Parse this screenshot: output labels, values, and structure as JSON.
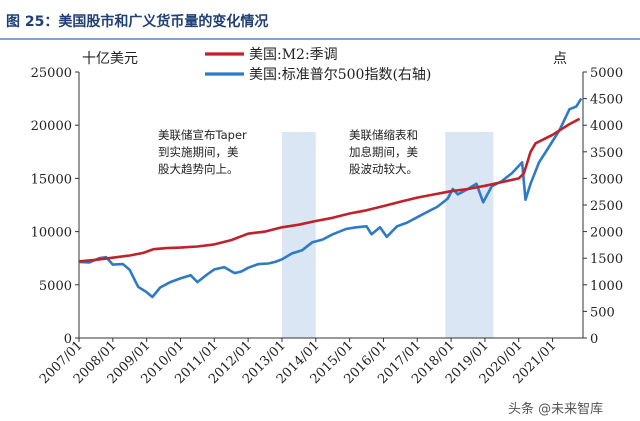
{
  "header": {
    "figure_label": "图 25：美国股市和广义货币量的变化情况"
  },
  "watermark": "头条 @未来智库",
  "colors": {
    "m2": "#c0222a",
    "sp500": "#2e7ac4",
    "shade": "#d5e2f3",
    "header_rule": "#7aa5d6"
  },
  "chart_data": {
    "type": "line",
    "left_axis": {
      "unit": "十亿美元",
      "ylim": [
        0,
        25000
      ],
      "ticks": [
        "0",
        "5000",
        "10000",
        "15000",
        "20000",
        "25000"
      ]
    },
    "right_axis": {
      "unit": "点",
      "ylim": [
        0,
        5000
      ],
      "ticks": [
        "0",
        "500",
        "1000",
        "1500",
        "2000",
        "2500",
        "3000",
        "3500",
        "4000",
        "4500",
        "5000"
      ]
    },
    "x_ticks": [
      "2007/01",
      "2008/01",
      "2009/01",
      "2010/01",
      "2011/01",
      "2012/01",
      "2013/01",
      "2014/01",
      "2015/01",
      "2016/01",
      "2017/01",
      "2018/01",
      "2019/01",
      "2020/01",
      "2021/01"
    ],
    "xlim": [
      2007.0,
      2021.9
    ],
    "legend": [
      {
        "name": "美国:M2:季调",
        "color": "#c0222a"
      },
      {
        "name": "美国:标准普尔500指数(右轴)",
        "color": "#2e7ac4"
      }
    ],
    "shaded_periods": [
      {
        "start": 2013.0,
        "end": 2014.0,
        "annotation": [
          "美联储宣布Taper",
          "到实施期间，美",
          "股大趋势向上。"
        ]
      },
      {
        "start": 2017.83,
        "end": 2019.25,
        "annotation": [
          "美联储缩表和",
          "加息期间，美",
          "股波动较大。"
        ]
      }
    ],
    "series": [
      {
        "name": "美国:M2:季调",
        "axis": "left",
        "x": [
          2007.0,
          2007.5,
          2008.0,
          2008.5,
          2008.9,
          2009.2,
          2009.6,
          2010.0,
          2010.5,
          2011.0,
          2011.5,
          2012.0,
          2012.5,
          2013.0,
          2013.5,
          2014.0,
          2014.5,
          2015.0,
          2015.5,
          2016.0,
          2016.5,
          2017.0,
          2017.5,
          2018.0,
          2018.5,
          2019.0,
          2019.5,
          2020.0,
          2020.15,
          2020.35,
          2020.5,
          2021.0,
          2021.5,
          2021.8
        ],
        "y": [
          7200,
          7350,
          7550,
          7750,
          8000,
          8350,
          8450,
          8500,
          8600,
          8800,
          9200,
          9800,
          10000,
          10400,
          10650,
          11000,
          11300,
          11700,
          12000,
          12400,
          12800,
          13200,
          13500,
          13800,
          14000,
          14300,
          14650,
          15000,
          15450,
          17500,
          18300,
          19100,
          20100,
          20600
        ]
      },
      {
        "name": "美国:标准普尔500指数(右轴)",
        "axis": "right",
        "x": [
          2007.0,
          2007.3,
          2007.6,
          2007.8,
          2008.0,
          2008.3,
          2008.5,
          2008.75,
          2009.0,
          2009.17,
          2009.4,
          2009.7,
          2010.0,
          2010.3,
          2010.5,
          2010.8,
          2011.0,
          2011.3,
          2011.6,
          2011.8,
          2012.0,
          2012.3,
          2012.6,
          2012.8,
          2013.0,
          2013.3,
          2013.6,
          2013.9,
          2014.2,
          2014.5,
          2014.9,
          2015.2,
          2015.5,
          2015.65,
          2015.9,
          2016.1,
          2016.4,
          2016.7,
          2017.0,
          2017.3,
          2017.6,
          2017.9,
          2018.05,
          2018.2,
          2018.5,
          2018.75,
          2018.95,
          2019.2,
          2019.5,
          2019.8,
          2020.1,
          2020.2,
          2020.35,
          2020.6,
          2020.9,
          2021.2,
          2021.5,
          2021.7,
          2021.85
        ],
        "y": [
          1430,
          1420,
          1500,
          1520,
          1380,
          1390,
          1280,
          960,
          860,
          770,
          950,
          1050,
          1120,
          1180,
          1050,
          1200,
          1290,
          1330,
          1220,
          1250,
          1320,
          1390,
          1400,
          1430,
          1480,
          1590,
          1650,
          1800,
          1850,
          1950,
          2050,
          2080,
          2100,
          1950,
          2080,
          1900,
          2100,
          2170,
          2270,
          2370,
          2470,
          2620,
          2800,
          2700,
          2800,
          2900,
          2550,
          2850,
          2950,
          3100,
          3300,
          2600,
          2900,
          3300,
          3600,
          3900,
          4300,
          4350,
          4500
        ]
      }
    ]
  }
}
